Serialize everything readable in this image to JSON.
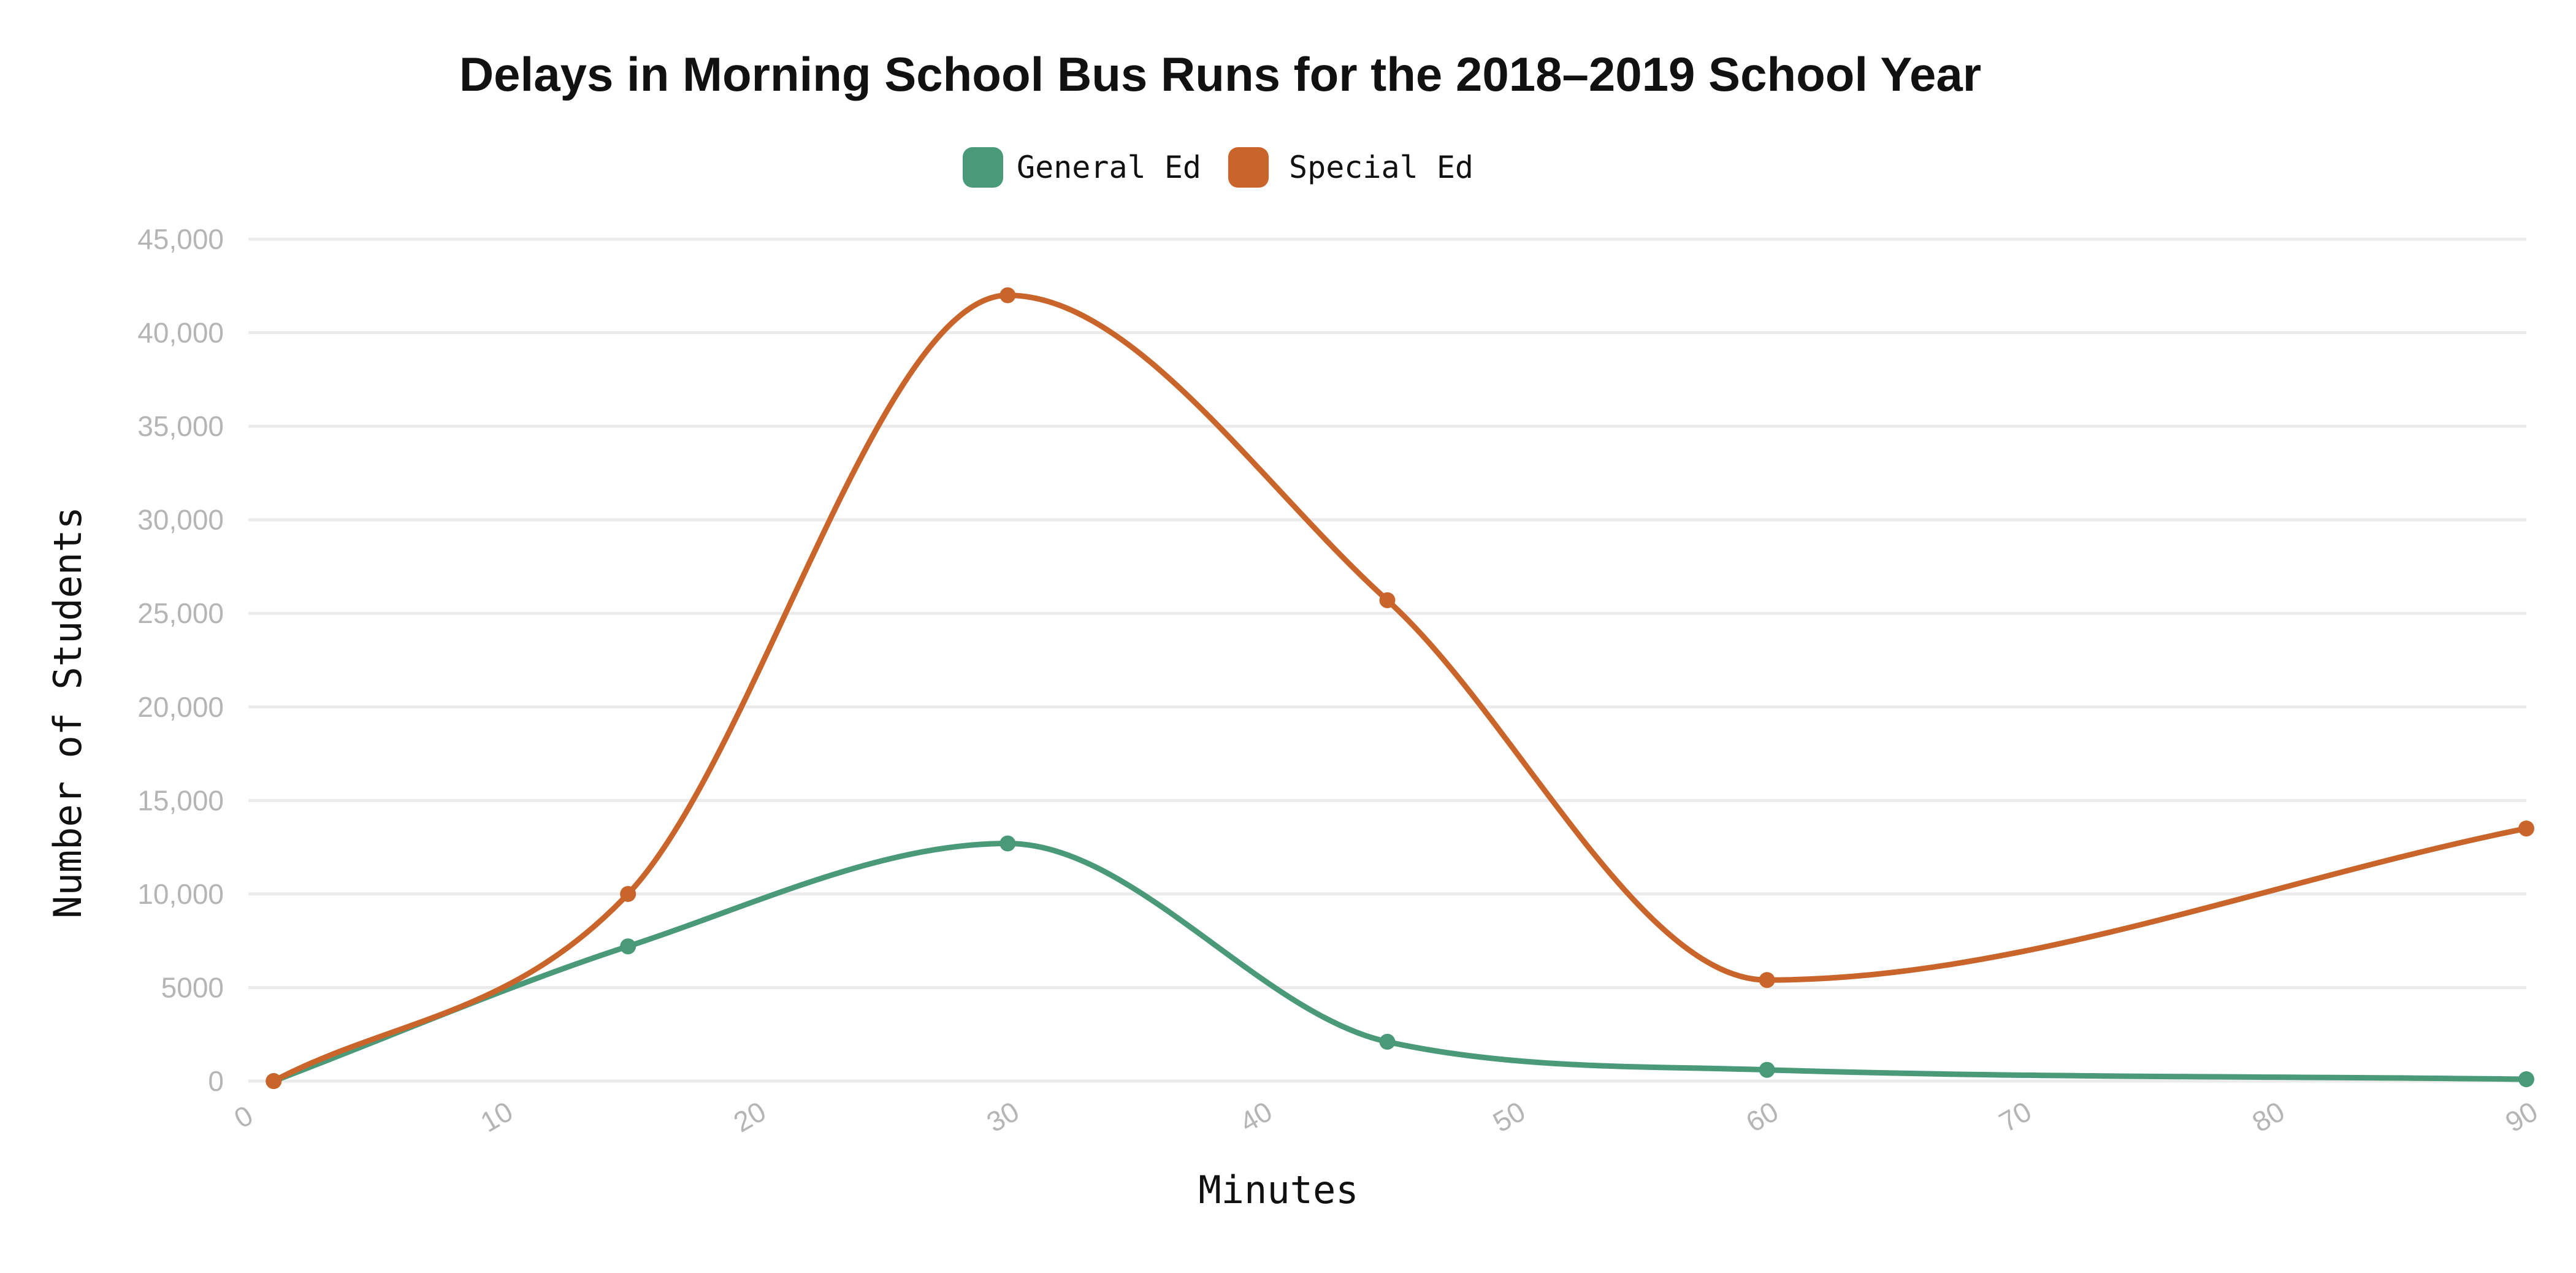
{
  "chart_data": {
    "type": "line",
    "title": "Delays in Morning School Bus Runs for the 2018–2019 School Year",
    "xlabel": "Minutes",
    "ylabel": "Number of Students",
    "xlim": [
      0,
      90
    ],
    "ylim": [
      0,
      45000
    ],
    "x_ticks": [
      "0",
      "10",
      "20",
      "30",
      "40",
      "50",
      "60",
      "70",
      "80",
      "90"
    ],
    "y_ticks": [
      "0",
      "5000",
      "10,000",
      "15,000",
      "20,000",
      "25,000",
      "30,000",
      "35,000",
      "40,000",
      "45,000"
    ],
    "grid": true,
    "legend_position": "top",
    "series": [
      {
        "name": "General Ed",
        "color": "#4a9a7a",
        "x": [
          1,
          15,
          30,
          45,
          60,
          90
        ],
        "y": [
          0,
          7200,
          12700,
          2100,
          600,
          100
        ]
      },
      {
        "name": "Special Ed",
        "color": "#c9642a",
        "x": [
          1,
          15,
          30,
          45,
          60,
          90
        ],
        "y": [
          0,
          10000,
          42000,
          25700,
          5400,
          13500
        ]
      }
    ]
  }
}
